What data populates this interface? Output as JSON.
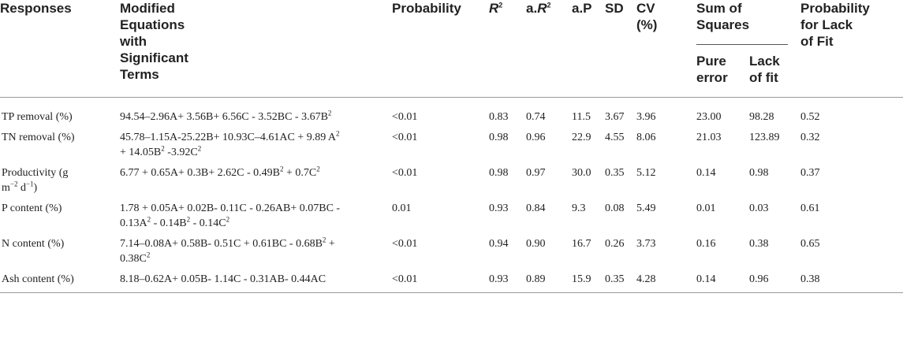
{
  "headers": {
    "responses": "Responses",
    "equations_l1": "Modified",
    "equations_l2": "Equations",
    "equations_l3": "with",
    "equations_l4": "Significant",
    "equations_l5": "Terms",
    "probability": "Probability",
    "r2_base": "R",
    "r2_sup": "2",
    "ar2_prefix": "a.",
    "ar2_base": "R",
    "ar2_sup": "2",
    "ap": "a.P",
    "sd": "SD",
    "cv_l1": "CV",
    "cv_l2": "(%)",
    "sum_l1": "Sum of",
    "sum_l2": "Squares",
    "pure_l1": "Pure",
    "pure_l2": "error",
    "lack_l1": "Lack",
    "lack_l2": "of fit",
    "plof_l1": "Probability",
    "plof_l2": "for Lack",
    "plof_l3": "of Fit"
  },
  "rows": [
    {
      "response": "TP removal (%)",
      "eq_a": "94.54–2.96A+ 3.56B+ 6.56C - 3.52BC - 3.67B",
      "eq_a_sup": "2",
      "probability": "<0.01",
      "r2": "0.83",
      "ar2": "0.74",
      "ap": "11.5",
      "sd": "3.67",
      "cv": "3.96",
      "pure_error": "23.00",
      "lack_of_fit": "98.28",
      "p_lack_fit": "0.52"
    },
    {
      "response": "TN removal (%)",
      "eq_a": "45.78–1.15A-25.22B+ 10.93C–4.61AC + 9.89 A",
      "eq_a_sup": "2",
      "eq_b": "+ 14.05B",
      "eq_b_sup": "2",
      "eq_c": " -3.92C",
      "eq_c_sup": "2",
      "probability": "<0.01",
      "r2": "0.98",
      "ar2": "0.96",
      "ap": "22.9",
      "sd": "4.55",
      "cv": "8.06",
      "pure_error": "21.03",
      "lack_of_fit": "123.89",
      "p_lack_fit": "0.32"
    },
    {
      "response_l1": "Productivity (g",
      "response_l2a": "m",
      "response_l2a_sup": "−2",
      "response_l2b": " d",
      "response_l2b_sup": "−1",
      "response_l2c": ")",
      "eq_a": "6.77 + 0.65A+ 0.3B+ 2.62C - 0.49B",
      "eq_a_sup": "2",
      "eq_b": " + 0.7C",
      "eq_b_sup": "2",
      "probability": "<0.01",
      "r2": "0.98",
      "ar2": "0.97",
      "ap": "30.0",
      "sd": "0.35",
      "cv": "5.12",
      "pure_error": "0.14",
      "lack_of_fit": "0.98",
      "p_lack_fit": "0.37"
    },
    {
      "response": "P content (%)",
      "eq_a": "1.78 + 0.05A+ 0.02B- 0.11C - 0.26AB+ 0.07BC -",
      "eq_b": "0.13A",
      "eq_b_sup": "2",
      "eq_c": " - 0.14B",
      "eq_c_sup": "2",
      "eq_d": " - 0.14C",
      "eq_d_sup": "2",
      "probability": "0.01",
      "r2": "0.93",
      "ar2": "0.84",
      "ap": "9.3",
      "sd": "0.08",
      "cv": "5.49",
      "pure_error": "0.01",
      "lack_of_fit": "0.03",
      "p_lack_fit": "0.61"
    },
    {
      "response": "N content (%)",
      "eq_a": "7.14–0.08A+ 0.58B- 0.51C + 0.61BC - 0.68B",
      "eq_a_sup": "2",
      "eq_a_tail": " +",
      "eq_b": "0.38C",
      "eq_b_sup": "2",
      "probability": "<0.01",
      "r2": "0.94",
      "ar2": "0.90",
      "ap": "16.7",
      "sd": "0.26",
      "cv": "3.73",
      "pure_error": "0.16",
      "lack_of_fit": "0.38",
      "p_lack_fit": "0.65"
    },
    {
      "response": "Ash content (%)",
      "eq_a": "8.18–0.62A+ 0.05B- 1.14C - 0.31AB- 0.44AC",
      "probability": "<0.01",
      "r2": "0.93",
      "ar2": "0.89",
      "ap": "15.9",
      "sd": "0.35",
      "cv": "4.28",
      "pure_error": "0.14",
      "lack_of_fit": "0.96",
      "p_lack_fit": "0.38"
    }
  ]
}
